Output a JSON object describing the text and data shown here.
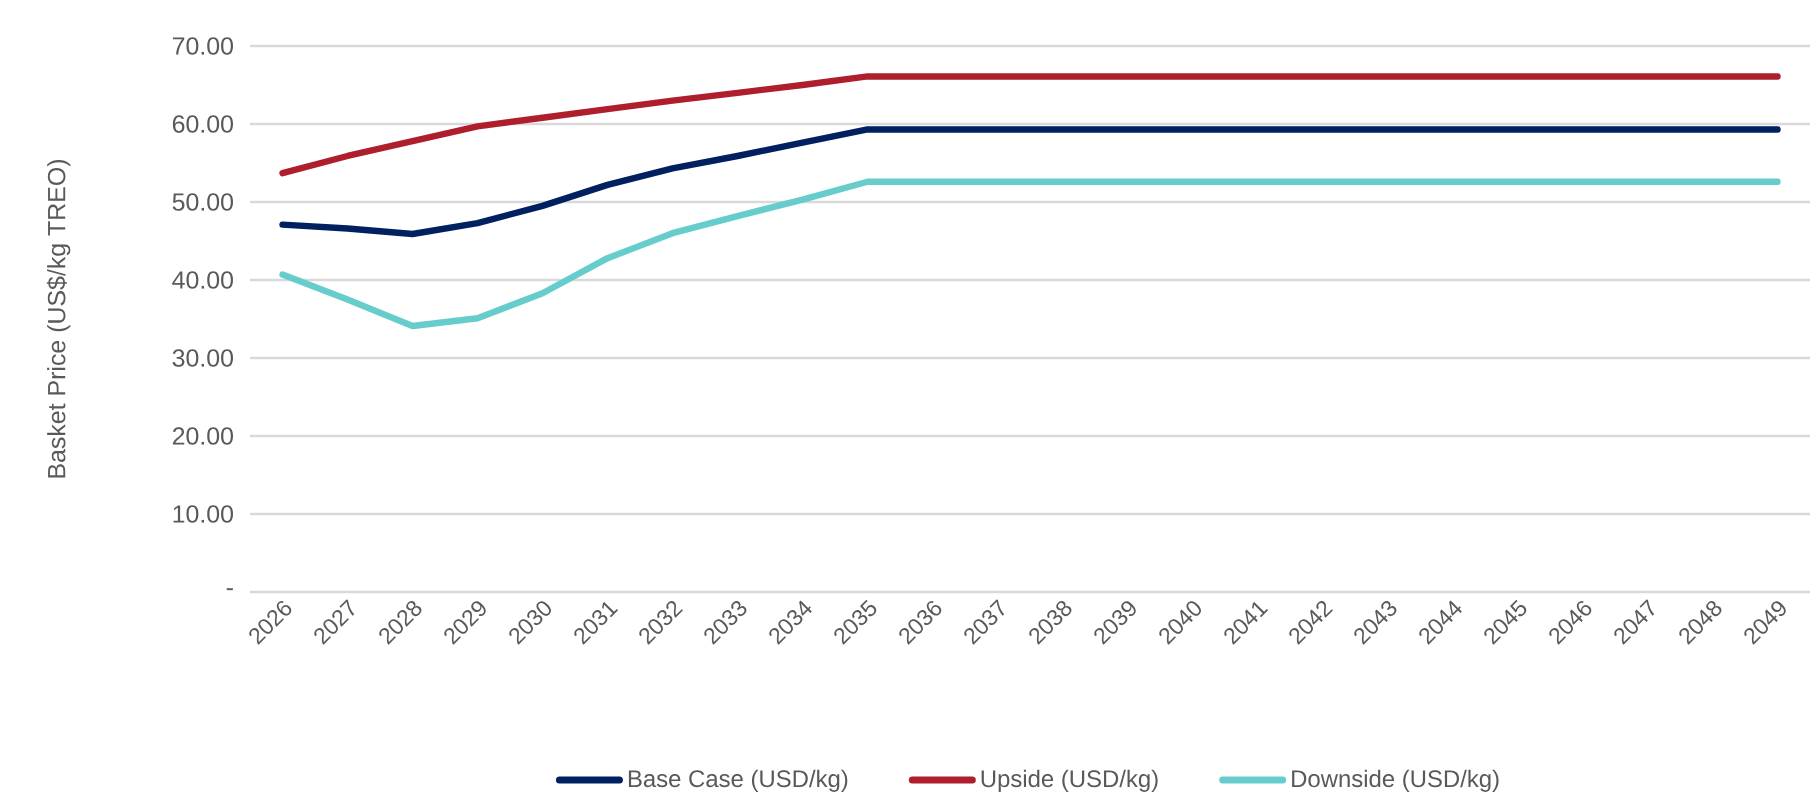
{
  "chart_data": {
    "type": "line",
    "ylabel": "Basket Price  (US$/kg TREO)",
    "categories": [
      "2026",
      "2027",
      "2028",
      "2029",
      "2030",
      "2031",
      "2032",
      "2033",
      "2034",
      "2035",
      "2036",
      "2037",
      "2038",
      "2039",
      "2040",
      "2041",
      "2042",
      "2043",
      "2044",
      "2045",
      "2046",
      "2047",
      "2048",
      "2049"
    ],
    "series": [
      {
        "name": "Base Case (USD/kg)",
        "color": "#002060",
        "values": [
          47.1,
          46.6,
          45.9,
          47.3,
          49.5,
          52.2,
          54.3,
          55.9,
          57.6,
          59.3,
          59.3,
          59.3,
          59.3,
          59.3,
          59.3,
          59.3,
          59.3,
          59.3,
          59.3,
          59.3,
          59.3,
          59.3,
          59.3,
          59.3
        ]
      },
      {
        "name": "Upside (USD/kg)",
        "color": "#af1e2d",
        "values": [
          53.7,
          55.9,
          57.8,
          59.7,
          60.8,
          61.9,
          63.0,
          64.0,
          65.0,
          66.1,
          66.1,
          66.1,
          66.1,
          66.1,
          66.1,
          66.1,
          66.1,
          66.1,
          66.1,
          66.1,
          66.1,
          66.1,
          66.1,
          66.1
        ]
      },
      {
        "name": "Downside (USD/kg)",
        "color": "#66cccc",
        "values": [
          40.7,
          37.5,
          34.1,
          35.1,
          38.3,
          42.8,
          46.0,
          48.2,
          50.3,
          52.6,
          52.6,
          52.6,
          52.6,
          52.6,
          52.6,
          52.6,
          52.6,
          52.6,
          52.6,
          52.6,
          52.6,
          52.6,
          52.6,
          52.6
        ]
      }
    ],
    "ylim": [
      0,
      70
    ],
    "yticks": [
      {
        "value": 0,
        "label": "-"
      },
      {
        "value": 10,
        "label": "10.00"
      },
      {
        "value": 20,
        "label": "20.00"
      },
      {
        "value": 30,
        "label": "30.00"
      },
      {
        "value": 40,
        "label": "40.00"
      },
      {
        "value": 50,
        "label": "50.00"
      },
      {
        "value": 60,
        "label": "60.00"
      },
      {
        "value": 70,
        "label": "70.00"
      }
    ],
    "grid": "y",
    "legend": "bottom",
    "line_style": "solid"
  }
}
